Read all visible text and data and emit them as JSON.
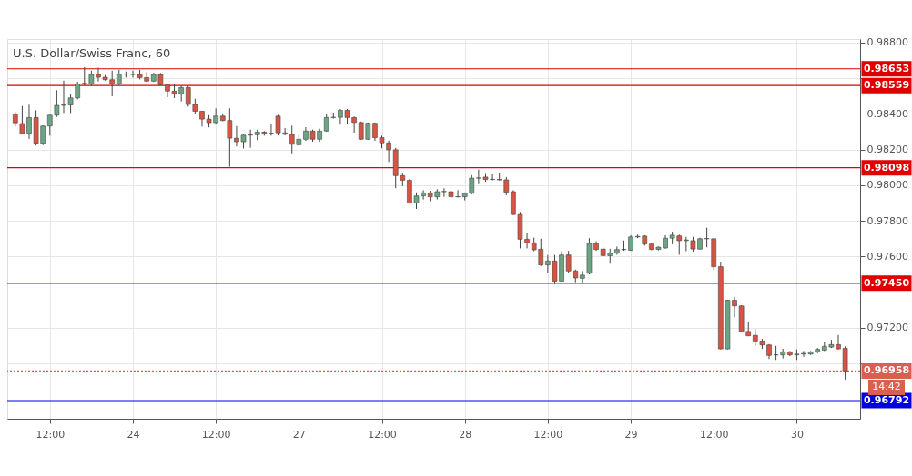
{
  "chart_data": {
    "type": "candlestick",
    "title": "U.S. Dollar/Swiss Franc, 60",
    "categories": [
      null,
      null,
      null,
      null,
      null,
      "12:00",
      null,
      null,
      null,
      null,
      null,
      null,
      null,
      null,
      null,
      null,
      null,
      "24",
      null,
      null,
      null,
      null,
      null,
      null,
      null,
      null,
      null,
      null,
      null,
      "12:00",
      null,
      null,
      null,
      null,
      null,
      null,
      null,
      null,
      null,
      null,
      null,
      "27",
      null,
      null,
      null,
      null,
      null,
      null,
      null,
      null,
      null,
      null,
      null,
      "12:00",
      null,
      null,
      null,
      null,
      null,
      null,
      null,
      null,
      null,
      null,
      null,
      "28",
      null,
      null,
      null,
      null,
      null,
      null,
      null,
      null,
      null,
      null,
      null,
      "12:00",
      null,
      null,
      null,
      null,
      null,
      null,
      null,
      null,
      null,
      null,
      null,
      "29",
      null,
      null,
      null,
      null,
      null,
      null,
      null,
      null,
      null,
      null,
      null,
      "12:00",
      null,
      null,
      null,
      null,
      null,
      null,
      null,
      null,
      null,
      null,
      null,
      "30",
      null,
      null,
      null,
      null,
      null,
      null,
      null
    ],
    "ohlc": [
      [
        0.984,
        0.9841,
        0.9833,
        0.9835
      ],
      [
        0.98346,
        0.98444,
        0.98286,
        0.98291
      ],
      [
        0.98291,
        0.98451,
        0.9826,
        0.9838
      ],
      [
        0.9838,
        0.9842,
        0.98223,
        0.98235
      ],
      [
        0.98235,
        0.98335,
        0.98225,
        0.98332
      ],
      [
        0.98332,
        0.98395,
        0.98278,
        0.98393
      ],
      [
        0.98393,
        0.98533,
        0.98383,
        0.98448
      ],
      [
        0.98448,
        0.98587,
        0.98405,
        0.9845
      ],
      [
        0.9845,
        0.9851,
        0.98405,
        0.9849
      ],
      [
        0.9849,
        0.9858,
        0.98482,
        0.98567
      ],
      [
        0.98572,
        0.98663,
        0.98558,
        0.98567
      ],
      [
        0.98567,
        0.98643,
        0.98558,
        0.98621
      ],
      [
        0.98621,
        0.9866,
        0.98582,
        0.98606
      ],
      [
        0.98606,
        0.98618,
        0.98587,
        0.98592
      ],
      [
        0.98592,
        0.98643,
        0.98499,
        0.98567
      ],
      [
        0.98567,
        0.98648,
        0.9856,
        0.98623
      ],
      [
        0.98623,
        0.98638,
        0.98604,
        0.98624
      ],
      [
        0.98623,
        0.98643,
        0.98604,
        0.98621
      ],
      [
        0.98621,
        0.98648,
        0.98594,
        0.98604
      ],
      [
        0.98604,
        0.98634,
        0.98579,
        0.98584
      ],
      [
        0.98584,
        0.9863,
        0.98579,
        0.98621
      ],
      [
        0.98621,
        0.9863,
        0.9856,
        0.98562
      ],
      [
        0.98562,
        0.9857,
        0.98494,
        0.98528
      ],
      [
        0.98528,
        0.9857,
        0.98489,
        0.98513
      ],
      [
        0.98513,
        0.98558,
        0.9847,
        0.98548
      ],
      [
        0.98548,
        0.98558,
        0.98441,
        0.98453
      ],
      [
        0.98453,
        0.98485,
        0.984,
        0.98415
      ],
      [
        0.98415,
        0.98417,
        0.98329,
        0.98371
      ],
      [
        0.98371,
        0.98393,
        0.98325,
        0.98351
      ],
      [
        0.98351,
        0.98431,
        0.98346,
        0.98388
      ],
      [
        0.98388,
        0.984,
        0.98359,
        0.98363
      ],
      [
        0.98363,
        0.98431,
        0.98104,
        0.98264
      ],
      [
        0.98264,
        0.98332,
        0.98218,
        0.98244
      ],
      [
        0.98244,
        0.98286,
        0.98206,
        0.98281
      ],
      [
        0.98281,
        0.98312,
        0.9821,
        0.98283
      ],
      [
        0.98283,
        0.98312,
        0.98252,
        0.98298
      ],
      [
        0.98298,
        0.98303,
        0.98278,
        0.98291
      ],
      [
        0.98291,
        0.98346,
        0.98278,
        0.98292
      ],
      [
        0.98388,
        0.98395,
        0.9828,
        0.98294
      ],
      [
        0.98294,
        0.9832,
        0.9828,
        0.98286
      ],
      [
        0.98286,
        0.98334,
        0.98179,
        0.9823
      ],
      [
        0.98227,
        0.98283,
        0.98221,
        0.98258
      ],
      [
        0.98258,
        0.98326,
        0.98249,
        0.98304
      ],
      [
        0.98304,
        0.98312,
        0.98244,
        0.98258
      ],
      [
        0.98258,
        0.98317,
        0.98244,
        0.98304
      ],
      [
        0.98304,
        0.98397,
        0.983,
        0.9838
      ],
      [
        0.9838,
        0.98408,
        0.98374,
        0.98381
      ],
      [
        0.98381,
        0.98428,
        0.9834,
        0.9842
      ],
      [
        0.9842,
        0.98428,
        0.98343,
        0.9838
      ],
      [
        0.9838,
        0.98385,
        0.98295,
        0.98352
      ],
      [
        0.98352,
        0.98357,
        0.98255,
        0.98258
      ],
      [
        0.98258,
        0.98352,
        0.98255,
        0.98348
      ],
      [
        0.98348,
        0.98352,
        0.98249,
        0.98267
      ],
      [
        0.98267,
        0.98278,
        0.98207,
        0.98238
      ],
      [
        0.98238,
        0.9825,
        0.98131,
        0.98199
      ],
      [
        0.98199,
        0.9821,
        0.97983,
        0.98054
      ],
      [
        0.98054,
        0.98071,
        0.97995,
        0.98028
      ],
      [
        0.98028,
        0.98034,
        0.97898,
        0.979
      ],
      [
        0.979,
        0.9796,
        0.97867,
        0.9794
      ],
      [
        0.9794,
        0.97972,
        0.9792,
        0.97957
      ],
      [
        0.97957,
        0.97969,
        0.97909,
        0.97935
      ],
      [
        0.97935,
        0.97978,
        0.9792,
        0.97964
      ],
      [
        0.97964,
        0.97983,
        0.97935,
        0.97965
      ],
      [
        0.97964,
        0.97972,
        0.97932,
        0.97935
      ],
      [
        0.97935,
        0.97972,
        0.97932,
        0.97936
      ],
      [
        0.97935,
        0.9796,
        0.97915,
        0.97955
      ],
      [
        0.97955,
        0.98057,
        0.97949,
        0.9804
      ],
      [
        0.9804,
        0.98088,
        0.98006,
        0.98041
      ],
      [
        0.98046,
        0.98068,
        0.9802,
        0.98032
      ],
      [
        0.98032,
        0.98063,
        0.98028,
        0.98033
      ],
      [
        0.98032,
        0.98071,
        0.98028,
        0.9803
      ],
      [
        0.9803,
        0.98046,
        0.97944,
        0.97961
      ],
      [
        0.97964,
        0.97972,
        0.97833,
        0.97836
      ],
      [
        0.97836,
        0.9785,
        0.97646,
        0.97697
      ],
      [
        0.97697,
        0.97731,
        0.97646,
        0.97677
      ],
      [
        0.97677,
        0.97706,
        0.9763,
        0.97638
      ],
      [
        0.97641,
        0.977,
        0.97547,
        0.97553
      ],
      [
        0.97553,
        0.97609,
        0.9751,
        0.97575
      ],
      [
        0.97575,
        0.97609,
        0.97445,
        0.97462
      ],
      [
        0.97462,
        0.97629,
        0.97459,
        0.97609
      ],
      [
        0.97609,
        0.97632,
        0.9751,
        0.97519
      ],
      [
        0.97519,
        0.97527,
        0.97456,
        0.9748
      ],
      [
        0.97478,
        0.97519,
        0.97451,
        0.97496
      ],
      [
        0.97506,
        0.97703,
        0.975,
        0.97673
      ],
      [
        0.97673,
        0.97686,
        0.97632,
        0.9764
      ],
      [
        0.97642,
        0.97652,
        0.97602,
        0.97605
      ],
      [
        0.97605,
        0.97644,
        0.9756,
        0.97619
      ],
      [
        0.97619,
        0.97656,
        0.9761,
        0.97639
      ],
      [
        0.97639,
        0.9769,
        0.97632,
        0.9764
      ],
      [
        0.97635,
        0.9772,
        0.97632,
        0.9771
      ],
      [
        0.9771,
        0.97723,
        0.97703,
        0.97713
      ],
      [
        0.97715,
        0.9772,
        0.97661,
        0.9767
      ],
      [
        0.9767,
        0.97673,
        0.97635,
        0.9764
      ],
      [
        0.9764,
        0.97656,
        0.97635,
        0.97653
      ],
      [
        0.97648,
        0.9772,
        0.97644,
        0.97703
      ],
      [
        0.97703,
        0.9774,
        0.97669,
        0.9772
      ],
      [
        0.97716,
        0.97723,
        0.9761,
        0.97689
      ],
      [
        0.97689,
        0.9771,
        0.9763,
        0.97693
      ],
      [
        0.97689,
        0.9771,
        0.97627,
        0.97642
      ],
      [
        0.97642,
        0.97706,
        0.9764,
        0.977
      ],
      [
        0.977,
        0.97762,
        0.97652,
        0.97701
      ],
      [
        0.977,
        0.977,
        0.97526,
        0.97543
      ],
      [
        0.97543,
        0.97571,
        0.97079,
        0.97082
      ],
      [
        0.97082,
        0.97358,
        0.97079,
        0.97355
      ],
      [
        0.97355,
        0.97374,
        0.9726,
        0.97323
      ],
      [
        0.97323,
        0.97327,
        0.9718,
        0.9718
      ],
      [
        0.9718,
        0.97234,
        0.97155,
        0.97155
      ],
      [
        0.97158,
        0.97193,
        0.97099,
        0.97126
      ],
      [
        0.97126,
        0.97138,
        0.97082,
        0.97104
      ],
      [
        0.97104,
        0.97109,
        0.97025,
        0.97045
      ],
      [
        0.97048,
        0.97099,
        0.9702,
        0.97049
      ],
      [
        0.97048,
        0.97082,
        0.97028,
        0.97065
      ],
      [
        0.97065,
        0.9707,
        0.97042,
        0.97048
      ],
      [
        0.97048,
        0.97079,
        0.9702,
        0.97053
      ],
      [
        0.97053,
        0.9707,
        0.97037,
        0.97057
      ],
      [
        0.97053,
        0.9707,
        0.97048,
        0.97065
      ],
      [
        0.97065,
        0.97087,
        0.97058,
        0.97079
      ],
      [
        0.97075,
        0.97121,
        0.9707,
        0.97096
      ],
      [
        0.97092,
        0.97133,
        0.97087,
        0.97106
      ],
      [
        0.97106,
        0.9716,
        0.97079,
        0.97082
      ],
      [
        0.97085,
        0.97096,
        0.9691,
        0.96958
      ]
    ],
    "colors": [
      "#d75442",
      "#d75442",
      "#6ba583",
      "#d75442",
      "#6ba583",
      "#6ba583",
      "#6ba583",
      "#6ba583",
      "#6ba583",
      "#6ba583",
      "#d75442",
      "#6ba583",
      "#d75442",
      "#d75442",
      "#d75442",
      "#6ba583",
      "#6ba583",
      "#d75442",
      "#d75442",
      "#d75442",
      "#6ba583",
      "#d75442",
      "#d75442",
      "#d75442",
      "#6ba583",
      "#d75442",
      "#d75442",
      "#d75442",
      "#d75442",
      "#6ba583",
      "#d75442",
      "#d75442",
      "#d75442",
      "#6ba583",
      "#6ba583",
      "#6ba583",
      "#d75442",
      "#6ba583",
      "#d75442",
      "#d75442",
      "#d75442",
      "#6ba583",
      "#6ba583",
      "#d75442",
      "#6ba583",
      "#6ba583",
      "#6ba583",
      "#6ba583",
      "#d75442",
      "#d75442",
      "#d75442",
      "#6ba583",
      "#d75442",
      "#d75442",
      "#d75442",
      "#d75442",
      "#d75442",
      "#d75442",
      "#6ba583",
      "#6ba583",
      "#d75442",
      "#6ba583",
      "#6ba583",
      "#d75442",
      "#6ba583",
      "#6ba583",
      "#6ba583",
      "#6ba583",
      "#d75442",
      "#6ba583",
      "#d75442",
      "#d75442",
      "#d75442",
      "#d75442",
      "#d75442",
      "#d75442",
      "#d75442",
      "#6ba583",
      "#d75442",
      "#6ba583",
      "#d75442",
      "#d75442",
      "#6ba583",
      "#6ba583",
      "#d75442",
      "#d75442",
      "#6ba583",
      "#6ba583",
      "#6ba583",
      "#6ba583",
      "#6ba583",
      "#d75442",
      "#d75442",
      "#6ba583",
      "#6ba583",
      "#6ba583",
      "#d75442",
      "#6ba583",
      "#d75442",
      "#6ba583",
      "#6ba583",
      "#d75442",
      "#d75442",
      "#6ba583",
      "#d75442",
      "#d75442",
      "#d75442",
      "#d75442",
      "#d75442",
      "#d75442",
      "#6ba583",
      "#6ba583",
      "#d75442",
      "#6ba583",
      "#6ba583",
      "#6ba583",
      "#6ba583",
      "#6ba583",
      "#6ba583",
      "#d75442",
      "#d75442"
    ],
    "ylim": [
      0.9669,
      0.9882
    ],
    "yticks": [
      {
        "value": 0.988,
        "label": "0.98800"
      },
      {
        "value": 0.986,
        "label": null
      },
      {
        "value": 0.984,
        "label": "0.98400"
      },
      {
        "value": 0.982,
        "label": "0.98200"
      },
      {
        "value": 0.98,
        "label": "0.98000"
      },
      {
        "value": 0.978,
        "label": "0.97800"
      },
      {
        "value": 0.976,
        "label": "0.97600"
      },
      {
        "value": 0.974,
        "label": null
      },
      {
        "value": 0.972,
        "label": "0.97200"
      },
      {
        "value": 0.97,
        "label": null
      }
    ],
    "grid": true,
    "ref_lines": [
      {
        "axis": "y",
        "value": 0.98653,
        "label": "0.98653",
        "color": "#e00000"
      },
      {
        "axis": "y",
        "value": 0.98559,
        "label": "0.98559",
        "color": "#e00000"
      },
      {
        "axis": "y",
        "value": 0.98098,
        "label": "0.98098",
        "color": "#e00000"
      },
      {
        "axis": "y",
        "value": 0.9745,
        "label": "0.97450",
        "color": "#e00000"
      },
      {
        "axis": "y",
        "value": 0.96958,
        "label": "0.96958",
        "color": "#d9604e",
        "line_style": "dotted"
      },
      {
        "axis": "y",
        "value": 0.96792,
        "label": "0.96792",
        "color": "#0000e0"
      }
    ],
    "annotations": [
      "14:42"
    ]
  }
}
